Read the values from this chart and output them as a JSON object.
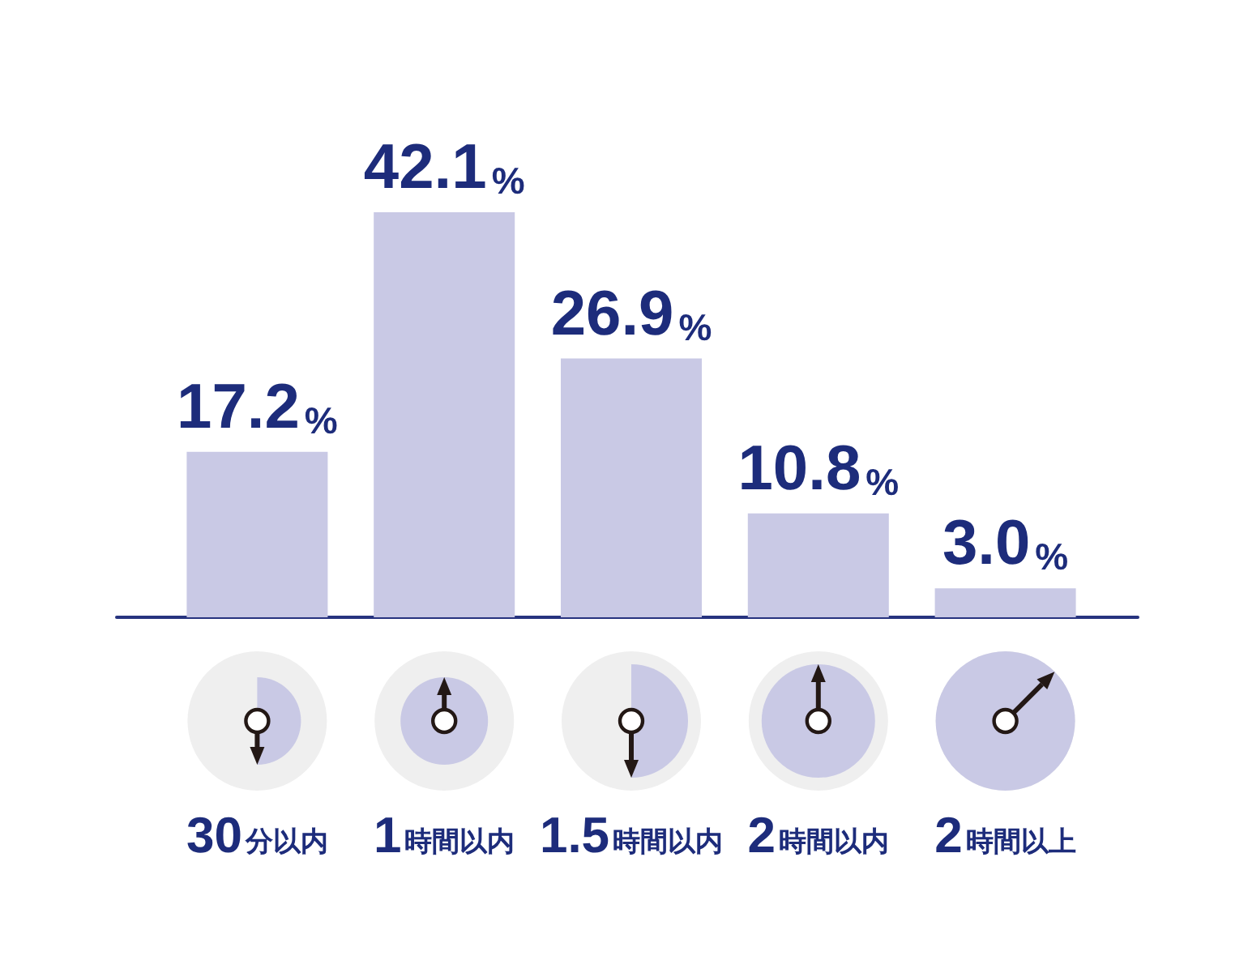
{
  "chart_data": {
    "type": "bar",
    "categories": [
      "30分以内",
      "1時間以内",
      "1.5時間以内",
      "2時間以内",
      "2時間以上"
    ],
    "values": [
      17.2,
      42.1,
      26.9,
      10.8,
      3.0
    ],
    "value_labels": [
      "17.2%",
      "42.1%",
      "26.9%",
      "10.8%",
      "3.0%"
    ],
    "color": "#c9c9e5",
    "tick_labels": "x"
  }
}
